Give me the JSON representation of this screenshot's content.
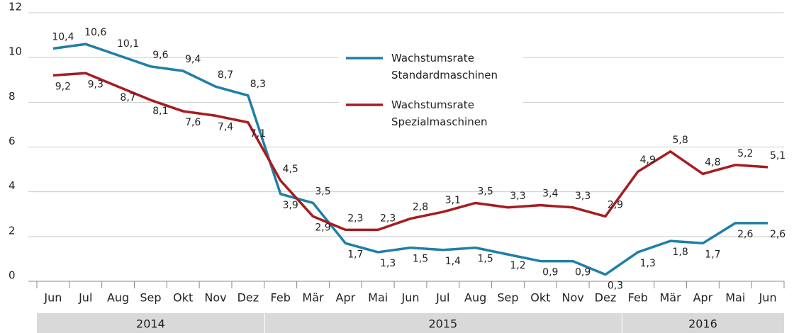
{
  "chart_data": {
    "type": "line",
    "categories": [
      "Jun",
      "Jul",
      "Aug",
      "Sep",
      "Okt",
      "Nov",
      "Dez",
      "Feb",
      "Mär",
      "Apr",
      "Mai",
      "Jun",
      "Jul",
      "Aug",
      "Sep",
      "Okt",
      "Nov",
      "Dez",
      "Feb",
      "Mär",
      "Apr",
      "Mai",
      "Jun"
    ],
    "years": [
      {
        "label": "2014",
        "span": 7
      },
      {
        "label": "2015",
        "span": 11
      },
      {
        "label": "2016",
        "span": 5
      }
    ],
    "series": [
      {
        "name": "Wachstumsrate Standardmaschinen",
        "color": "#1f7fa6",
        "values": [
          10.4,
          10.6,
          10.1,
          9.6,
          9.4,
          8.7,
          8.3,
          3.9,
          3.5,
          1.7,
          1.3,
          1.5,
          1.4,
          1.5,
          1.2,
          0.9,
          0.9,
          0.3,
          1.3,
          1.8,
          1.7,
          2.6,
          2.6
        ],
        "value_labels": [
          "10,4",
          "10,6",
          "10,1",
          "9,6",
          "9,4",
          "8,7",
          "8,3",
          "3,9",
          "3,5",
          "1,7",
          "1,3",
          "1,5",
          "1,4",
          "1,5",
          "1,2",
          "0,9",
          "0,9",
          "0,3",
          "1,3",
          "1,8",
          "1,7",
          "2,6",
          "2,6"
        ]
      },
      {
        "name": "Wachstumsrate Spezialmaschinen",
        "color": "#a61c1f",
        "values": [
          9.2,
          9.3,
          8.7,
          8.1,
          7.6,
          7.4,
          7.1,
          4.5,
          2.9,
          2.3,
          2.3,
          2.8,
          3.1,
          3.5,
          3.3,
          3.4,
          3.3,
          2.9,
          4.9,
          5.8,
          4.8,
          5.2,
          5.1
        ],
        "value_labels": [
          "9,2",
          "9,3",
          "8,7",
          "8,1",
          "7,6",
          "7,4",
          "7,1",
          "4,5",
          "2,9",
          "2,3",
          "2,3",
          "2,8",
          "3,1",
          "3,5",
          "3,3",
          "3,4",
          "3,3",
          "2,9",
          "4,9",
          "5,8",
          "4,8",
          "5,2",
          "5,1"
        ]
      }
    ],
    "ylim": [
      0,
      12
    ],
    "yticks": [
      0,
      2,
      4,
      6,
      8,
      10,
      12
    ],
    "grid": true
  }
}
